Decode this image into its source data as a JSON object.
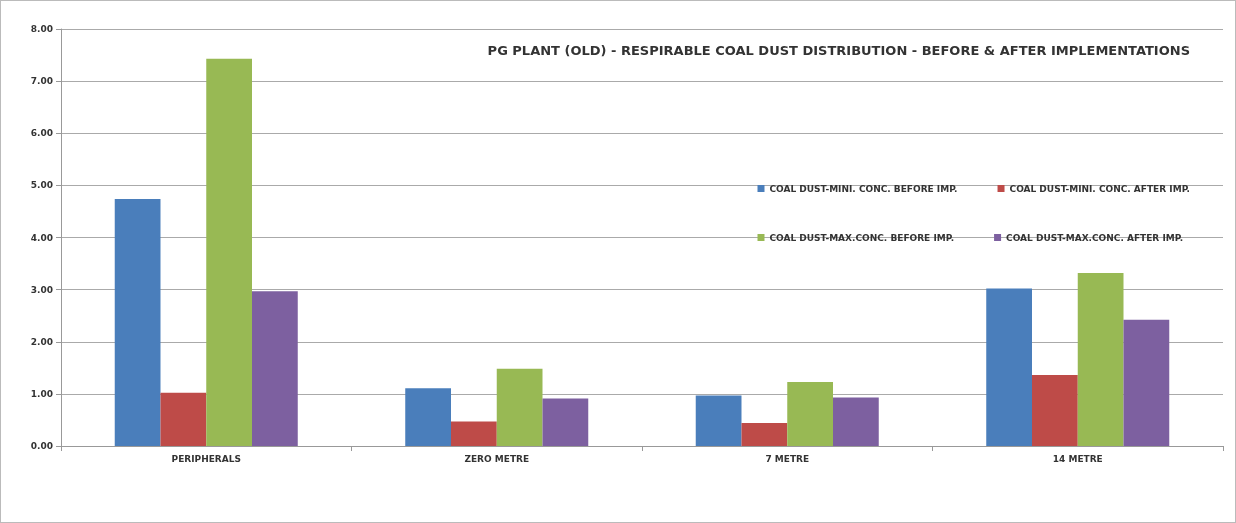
{
  "chart_data": {
    "type": "bar",
    "title": "PG PLANT (OLD) - RESPIRABLE COAL DUST DISTRIBUTION - BEFORE & AFTER IMPLEMENTATIONS",
    "categories": [
      "PERIPHERALS",
      "ZERO METRE",
      "7 METRE",
      "14 METRE"
    ],
    "series": [
      {
        "name": "COAL DUST-MINI. CONC. BEFORE IMP.",
        "color": "#4a7ebb",
        "values": [
          4.74,
          1.11,
          0.97,
          3.02
        ]
      },
      {
        "name": "COAL DUST-MINI. CONC. AFTER IMP.",
        "color": "#be4b48",
        "values": [
          1.02,
          0.47,
          0.44,
          1.36
        ]
      },
      {
        "name": "COAL DUST-MAX.CONC. BEFORE IMP.",
        "color": "#98b954",
        "values": [
          7.43,
          1.48,
          1.23,
          3.32
        ]
      },
      {
        "name": "COAL DUST-MAX.CONC. AFTER IMP.",
        "color": "#7d60a0",
        "values": [
          2.97,
          0.91,
          0.93,
          2.42
        ]
      }
    ],
    "ylim": [
      0,
      8
    ],
    "yticks": [
      {
        "value": 0,
        "label": "0.00"
      },
      {
        "value": 1,
        "label": "1.00"
      },
      {
        "value": 2,
        "label": "2.00"
      },
      {
        "value": 3,
        "label": "3.00"
      },
      {
        "value": 4,
        "label": "4.00"
      },
      {
        "value": 5,
        "label": "5.00"
      },
      {
        "value": 6,
        "label": "6.00"
      },
      {
        "value": 7,
        "label": "7.00"
      },
      {
        "value": 8,
        "label": "8.00"
      }
    ],
    "grid": "y",
    "legend": "right"
  }
}
